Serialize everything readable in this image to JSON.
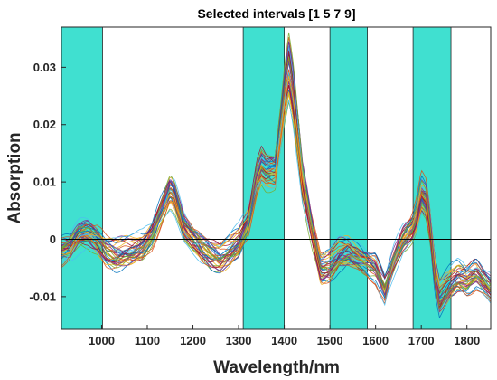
{
  "chart_data": {
    "type": "line",
    "title": "Selected intervals [1  5  7  9]",
    "xlabel": "Wavelength/nm",
    "ylabel": "Absorption",
    "xlim": [
      912,
      1852
    ],
    "ylim": [
      -0.0157,
      0.037
    ],
    "x_ticks": [
      1000,
      1100,
      1200,
      1300,
      1400,
      1500,
      1600,
      1700,
      1800
    ],
    "y_ticks": [
      -0.01,
      0,
      0.01,
      0.02,
      0.03
    ],
    "y_tick_labels": [
      "-0.01",
      "0",
      "0.01",
      "0.02",
      "0.03"
    ],
    "grid": false,
    "legend": "none",
    "zero_line": true,
    "highlight_color": "#40E0D0",
    "selected_intervals": [
      {
        "interval": 1,
        "x_start": 912,
        "x_end": 1002
      },
      {
        "interval": 5,
        "x_start": 1310,
        "x_end": 1400
      },
      {
        "interval": 7,
        "x_start": 1500,
        "x_end": 1582
      },
      {
        "interval": 9,
        "x_start": 1682,
        "x_end": 1765
      }
    ],
    "series_count": 40,
    "series_colors": [
      "#0072BD",
      "#D95319",
      "#EDB120",
      "#7E2F8E",
      "#77AC30",
      "#4DBEEE",
      "#A2142F"
    ],
    "mean_spectrum": {
      "x": [
        912,
        930,
        950,
        970,
        990,
        1010,
        1030,
        1050,
        1070,
        1090,
        1110,
        1130,
        1150,
        1160,
        1180,
        1200,
        1220,
        1240,
        1260,
        1280,
        1300,
        1320,
        1340,
        1350,
        1360,
        1380,
        1400,
        1410,
        1420,
        1440,
        1460,
        1480,
        1500,
        1520,
        1540,
        1560,
        1580,
        1600,
        1620,
        1640,
        1660,
        1680,
        1690,
        1700,
        1710,
        1720,
        1730,
        1740,
        1760,
        1780,
        1800,
        1820,
        1852
      ],
      "y": [
        -0.002,
        -0.0015,
        0.0005,
        0.001,
        0.0,
        -0.002,
        -0.0025,
        -0.002,
        -0.0018,
        -0.0012,
        0.001,
        0.005,
        0.0085,
        0.0075,
        0.002,
        0.0,
        -0.0015,
        -0.0025,
        -0.003,
        -0.002,
        -0.0005,
        0.003,
        0.011,
        0.013,
        0.012,
        0.012,
        0.025,
        0.03,
        0.025,
        0.01,
        0.002,
        -0.005,
        -0.0045,
        -0.0025,
        -0.002,
        -0.003,
        -0.004,
        -0.005,
        -0.009,
        -0.004,
        0.0,
        0.002,
        0.004,
        0.008,
        0.007,
        0.002,
        -0.006,
        -0.01,
        -0.008,
        -0.0065,
        -0.007,
        -0.006,
        -0.009
      ]
    }
  }
}
